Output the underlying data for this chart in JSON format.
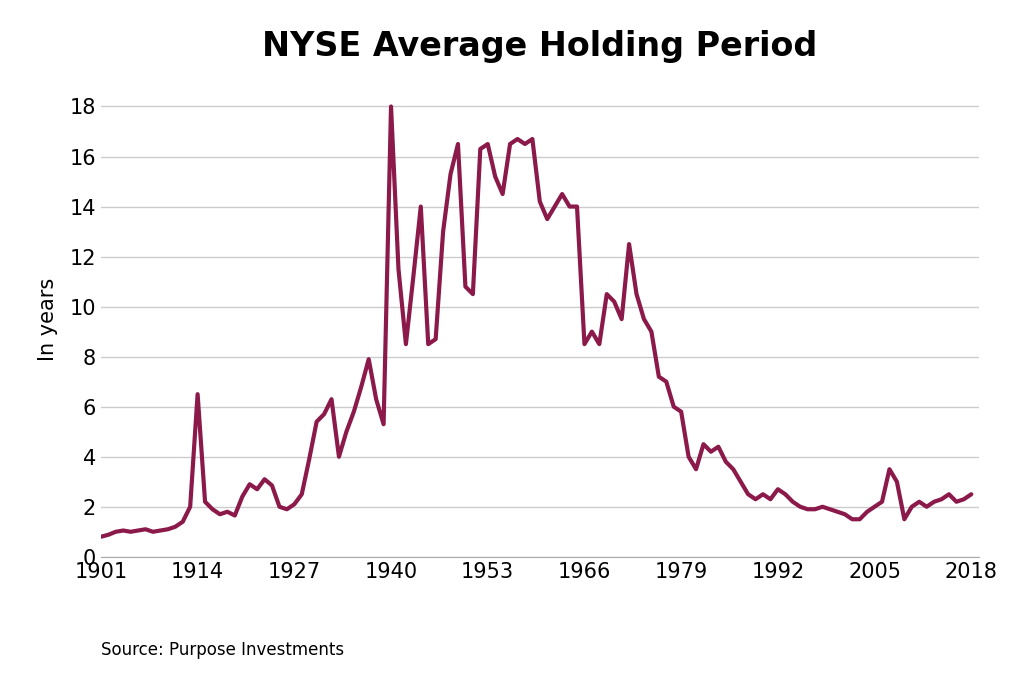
{
  "title": "NYSE Average Holding Period",
  "ylabel": "In years",
  "source": "Source: Purpose Investments",
  "line_color": "#8B1A4A",
  "line_width": 3.0,
  "background_color": "#ffffff",
  "grid_color": "#cccccc",
  "xlim": [
    1901,
    2019
  ],
  "ylim": [
    0,
    19
  ],
  "xticks": [
    1901,
    1914,
    1927,
    1940,
    1953,
    1966,
    1979,
    1992,
    2005,
    2018
  ],
  "yticks": [
    0,
    2,
    4,
    6,
    8,
    10,
    12,
    14,
    16,
    18
  ],
  "title_fontsize": 24,
  "tick_fontsize": 15,
  "ylabel_fontsize": 15,
  "source_fontsize": 12,
  "data": [
    [
      1901,
      0.8
    ],
    [
      1902,
      0.88
    ],
    [
      1903,
      1.0
    ],
    [
      1904,
      1.05
    ],
    [
      1905,
      1.0
    ],
    [
      1906,
      1.05
    ],
    [
      1907,
      1.1
    ],
    [
      1908,
      1.0
    ],
    [
      1909,
      1.05
    ],
    [
      1910,
      1.1
    ],
    [
      1911,
      1.2
    ],
    [
      1912,
      1.4
    ],
    [
      1913,
      2.0
    ],
    [
      1914,
      6.5
    ],
    [
      1915,
      2.2
    ],
    [
      1916,
      1.9
    ],
    [
      1917,
      1.7
    ],
    [
      1918,
      1.8
    ],
    [
      1919,
      1.65
    ],
    [
      1920,
      2.4
    ],
    [
      1921,
      2.9
    ],
    [
      1922,
      2.7
    ],
    [
      1923,
      3.1
    ],
    [
      1924,
      2.85
    ],
    [
      1925,
      2.0
    ],
    [
      1926,
      1.9
    ],
    [
      1927,
      2.1
    ],
    [
      1928,
      2.5
    ],
    [
      1929,
      3.9
    ],
    [
      1930,
      5.4
    ],
    [
      1931,
      5.7
    ],
    [
      1932,
      6.3
    ],
    [
      1933,
      4.0
    ],
    [
      1934,
      5.0
    ],
    [
      1935,
      5.8
    ],
    [
      1936,
      6.8
    ],
    [
      1937,
      7.9
    ],
    [
      1938,
      6.3
    ],
    [
      1939,
      5.3
    ],
    [
      1940,
      18.0
    ],
    [
      1941,
      11.5
    ],
    [
      1942,
      8.5
    ],
    [
      1943,
      11.2
    ],
    [
      1944,
      14.0
    ],
    [
      1945,
      8.5
    ],
    [
      1946,
      8.7
    ],
    [
      1947,
      13.0
    ],
    [
      1948,
      15.3
    ],
    [
      1949,
      16.5
    ],
    [
      1950,
      10.8
    ],
    [
      1951,
      10.5
    ],
    [
      1952,
      16.3
    ],
    [
      1953,
      16.5
    ],
    [
      1954,
      15.2
    ],
    [
      1955,
      14.5
    ],
    [
      1956,
      16.5
    ],
    [
      1957,
      16.7
    ],
    [
      1958,
      16.5
    ],
    [
      1959,
      16.7
    ],
    [
      1960,
      14.2
    ],
    [
      1961,
      13.5
    ],
    [
      1962,
      14.0
    ],
    [
      1963,
      14.5
    ],
    [
      1964,
      14.0
    ],
    [
      1965,
      14.0
    ],
    [
      1966,
      8.5
    ],
    [
      1967,
      9.0
    ],
    [
      1968,
      8.5
    ],
    [
      1969,
      10.5
    ],
    [
      1970,
      10.2
    ],
    [
      1971,
      9.5
    ],
    [
      1972,
      12.5
    ],
    [
      1973,
      10.5
    ],
    [
      1974,
      9.5
    ],
    [
      1975,
      9.0
    ],
    [
      1976,
      7.2
    ],
    [
      1977,
      7.0
    ],
    [
      1978,
      6.0
    ],
    [
      1979,
      5.8
    ],
    [
      1980,
      4.0
    ],
    [
      1981,
      3.5
    ],
    [
      1982,
      4.5
    ],
    [
      1983,
      4.2
    ],
    [
      1984,
      4.4
    ],
    [
      1985,
      3.8
    ],
    [
      1986,
      3.5
    ],
    [
      1987,
      3.0
    ],
    [
      1988,
      2.5
    ],
    [
      1989,
      2.3
    ],
    [
      1990,
      2.5
    ],
    [
      1991,
      2.3
    ],
    [
      1992,
      2.7
    ],
    [
      1993,
      2.5
    ],
    [
      1994,
      2.2
    ],
    [
      1995,
      2.0
    ],
    [
      1996,
      1.9
    ],
    [
      1997,
      1.9
    ],
    [
      1998,
      2.0
    ],
    [
      1999,
      1.9
    ],
    [
      2000,
      1.8
    ],
    [
      2001,
      1.7
    ],
    [
      2002,
      1.5
    ],
    [
      2003,
      1.5
    ],
    [
      2004,
      1.8
    ],
    [
      2005,
      2.0
    ],
    [
      2006,
      2.2
    ],
    [
      2007,
      3.5
    ],
    [
      2008,
      3.0
    ],
    [
      2009,
      1.5
    ],
    [
      2010,
      2.0
    ],
    [
      2011,
      2.2
    ],
    [
      2012,
      2.0
    ],
    [
      2013,
      2.2
    ],
    [
      2014,
      2.3
    ],
    [
      2015,
      2.5
    ],
    [
      2016,
      2.2
    ],
    [
      2017,
      2.3
    ],
    [
      2018,
      2.5
    ]
  ]
}
